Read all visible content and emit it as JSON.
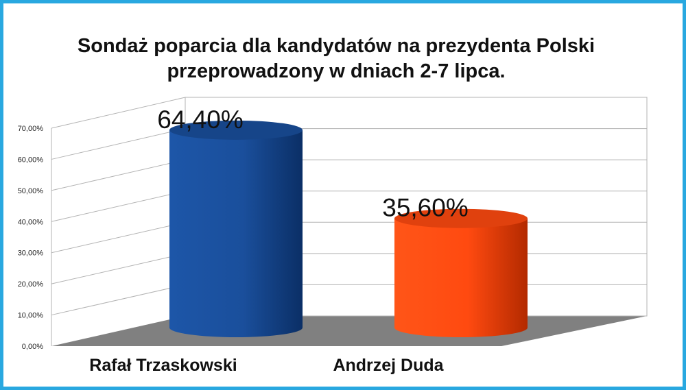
{
  "chart_data": {
    "type": "bar",
    "style": "3d-cylinder",
    "title_lines": [
      "Sondaż poparcia dla kandydatów na prezydenta Polski",
      "przeprowadzony w dniach 2-7 lipca."
    ],
    "categories": [
      "Rafał Trzaskowski",
      "Andrzej Duda"
    ],
    "values": [
      64.4,
      35.6
    ],
    "data_labels": [
      "64,40%",
      "35,60%"
    ],
    "y_ticks": [
      "0,00%",
      "10,00%",
      "20,00%",
      "30,00%",
      "40,00%",
      "50,00%",
      "60,00%",
      "70,00%"
    ],
    "ylim": [
      0,
      70
    ],
    "grid": true,
    "legend": "none",
    "colors": {
      "bar1": "#1a4f9c",
      "bar1_dark": "#0b2f66",
      "bar2": "#ff4a10",
      "bar2_dark": "#b32a00",
      "frame": "#29a8e0",
      "floor": "#808080"
    }
  }
}
